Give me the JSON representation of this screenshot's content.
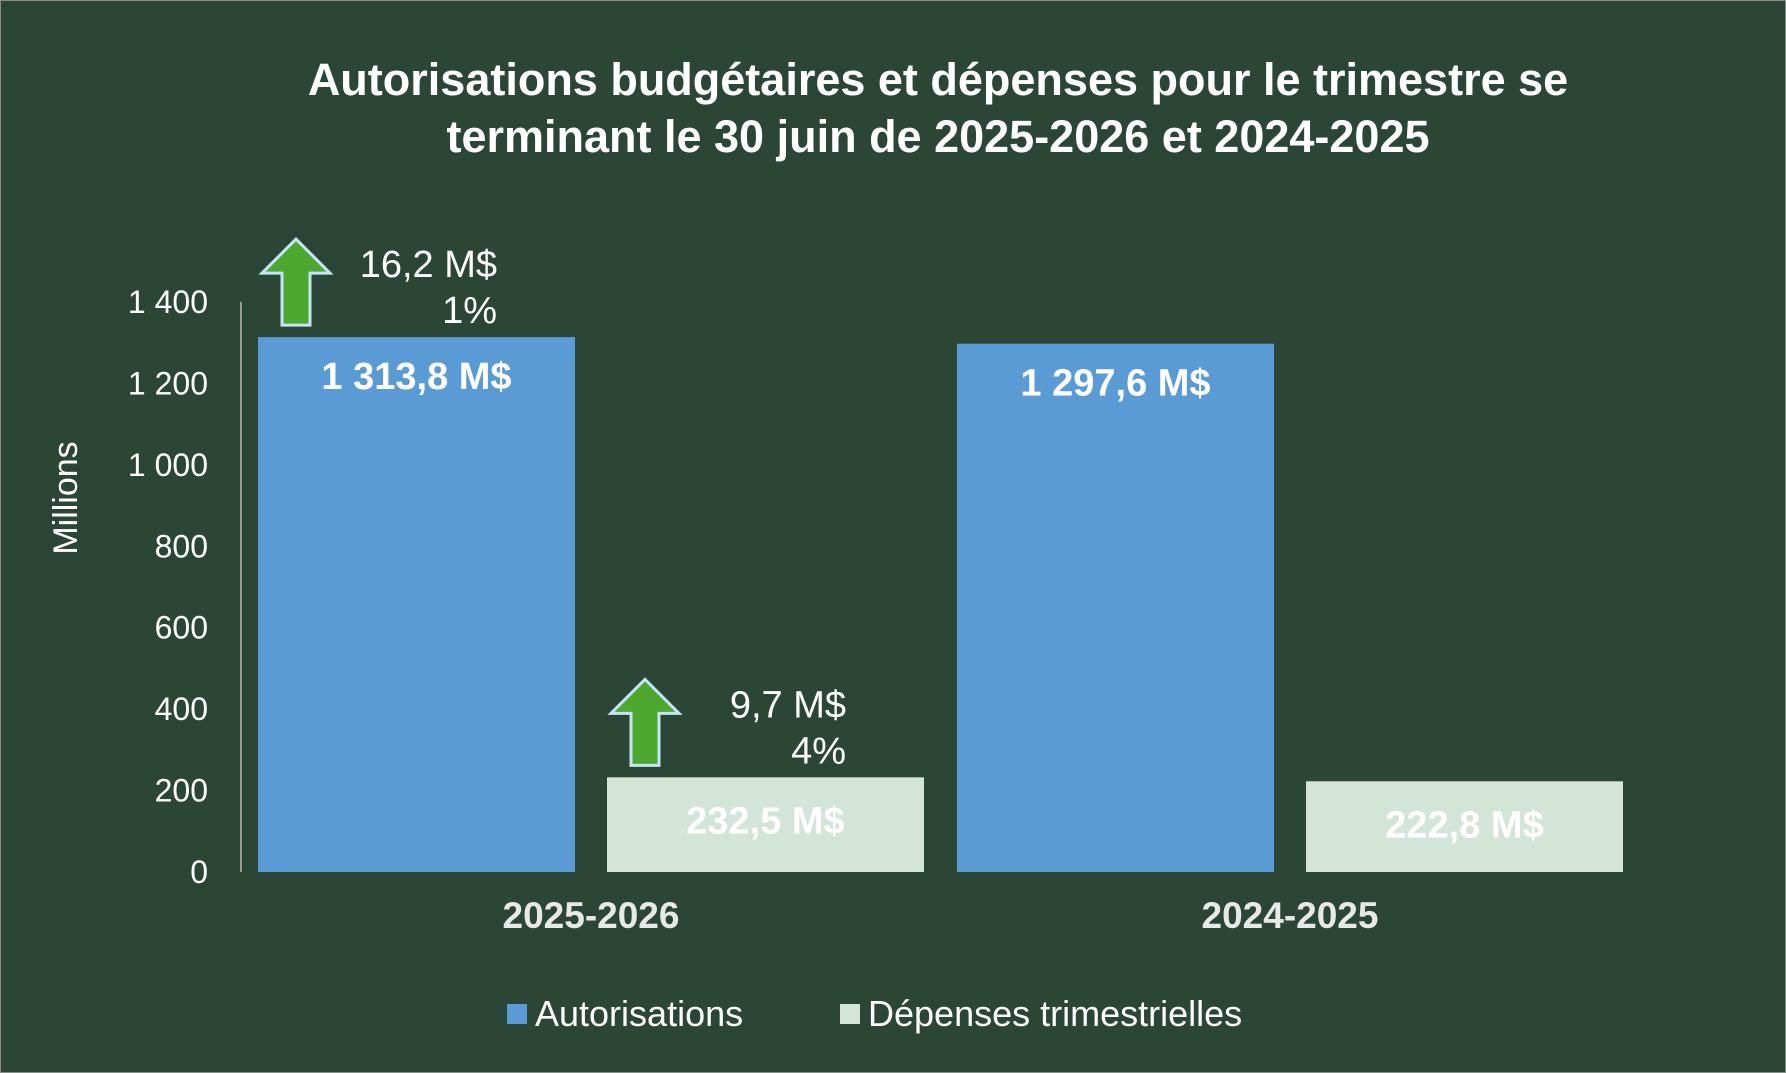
{
  "chart_data": {
    "type": "bar",
    "title_lines": [
      "Autorisations budgétaires et dépenses pour le trimestre se",
      "terminant le 30 juin de 2025-2026 et 2024-2025"
    ],
    "ylabel": "Millions",
    "xlabel": "",
    "ylim": [
      0,
      1400
    ],
    "yticks": [
      0,
      200,
      400,
      600,
      800,
      1000,
      1200,
      1400
    ],
    "ytick_labels": [
      "0",
      "200",
      "400",
      "600",
      "800",
      "1 000",
      "1 200",
      "1 400"
    ],
    "grid": false,
    "categories": [
      "2025-2026",
      "2024-2025"
    ],
    "series": [
      {
        "name": "Autorisations",
        "color": "#5b9bd5",
        "values": [
          1313.8,
          1297.6
        ],
        "data_labels": [
          "1 313,8 M$",
          "1 297,6 M$"
        ]
      },
      {
        "name": "Dépenses trimestrielles",
        "color": "#d3e4d9",
        "values": [
          232.5,
          222.8
        ],
        "data_labels": [
          "232,5 M$",
          "222,8 M$"
        ]
      }
    ],
    "annotations": [
      {
        "series": 0,
        "category": 0,
        "icon": "up-arrow-icon",
        "change": "16,2 M$",
        "percent": "1%"
      },
      {
        "series": 1,
        "category": 0,
        "icon": "up-arrow-icon",
        "change": "9,7 M$",
        "percent": "4%"
      }
    ],
    "legend_position": "bottom",
    "colors": {
      "background": "#2b4636",
      "text": "#ffffff",
      "arrow_fill": "#4ea72e",
      "arrow_stroke": "#c5e5f5"
    }
  }
}
